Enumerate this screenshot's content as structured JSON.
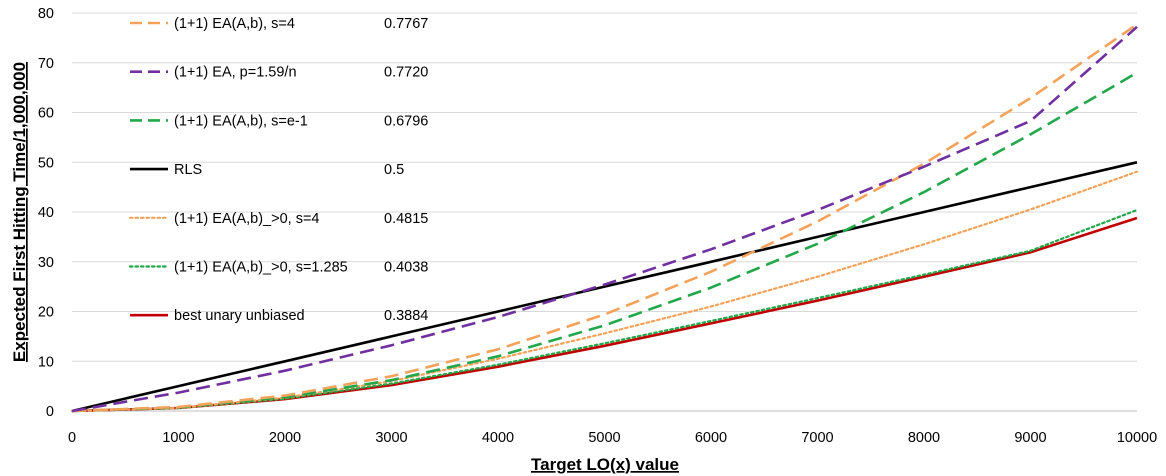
{
  "chart_data": {
    "type": "line",
    "title": "",
    "xlabel": "Target LO(x) value",
    "ylabel": "Expected First Hitting Time/1,000,000",
    "xlim": [
      0,
      10000
    ],
    "ylim": [
      0,
      80
    ],
    "xticks": [
      0,
      1000,
      2000,
      3000,
      4000,
      5000,
      6000,
      7000,
      8000,
      9000,
      10000
    ],
    "yticks": [
      0,
      10,
      20,
      30,
      40,
      50,
      60,
      70,
      80
    ],
    "grid": "horizontal",
    "legend_position": "top-left",
    "x": [
      0,
      1000,
      2000,
      3000,
      4000,
      5000,
      6000,
      7000,
      8000,
      9000,
      10000
    ],
    "series": [
      {
        "name": "(1+1) EA(A,b), s=4",
        "value_label": "0.7767",
        "color": "#F4A259",
        "style": "dashed",
        "values": [
          0,
          0.8,
          3.1,
          7.0,
          12.4,
          19.4,
          28.0,
          38.1,
          49.7,
          62.9,
          77.7
        ]
      },
      {
        "name": "(1+1) EA, p=1.59/n",
        "value_label": "0.7720",
        "color": "#7030A0",
        "style": "dashed",
        "values": [
          0,
          3.7,
          8.1,
          13.2,
          18.9,
          25.4,
          32.5,
          40.4,
          49.1,
          58.3,
          77.2
        ]
      },
      {
        "name": "(1+1) EA(A,b), s=e-1",
        "value_label": "0.6796",
        "color": "#22A84A",
        "style": "dashed",
        "values": [
          0,
          0.7,
          2.8,
          6.2,
          11.0,
          17.2,
          24.8,
          33.6,
          44.0,
          55.6,
          68.0
        ]
      },
      {
        "name": "RLS",
        "value_label": "0.5",
        "color": "#000000",
        "style": "solid",
        "values": [
          0,
          5,
          10,
          15,
          20,
          25,
          30,
          35,
          40,
          45,
          50
        ]
      },
      {
        "name": "(1+1) EA(A,b)_>0, s=4",
        "value_label": "0.4815",
        "color": "#F4A259",
        "style": "dotted",
        "values": [
          0,
          0.6,
          2.7,
          6.0,
          10.5,
          15.6,
          21.0,
          27.0,
          33.5,
          40.5,
          48.1
        ]
      },
      {
        "name": "(1+1) EA(A,b)_>0, s=1.285",
        "value_label": "0.4038",
        "color": "#22A84A",
        "style": "dotted",
        "values": [
          0,
          0.6,
          2.5,
          5.5,
          9.3,
          13.6,
          18.1,
          22.7,
          27.4,
          32.2,
          40.4
        ]
      },
      {
        "name": "best unary unbiased",
        "value_label": "0.3884",
        "color": "#C00000",
        "style": "solid",
        "values": [
          0,
          0.6,
          2.4,
          5.2,
          8.9,
          13.1,
          17.6,
          22.2,
          27.0,
          31.9,
          38.8
        ]
      }
    ]
  }
}
